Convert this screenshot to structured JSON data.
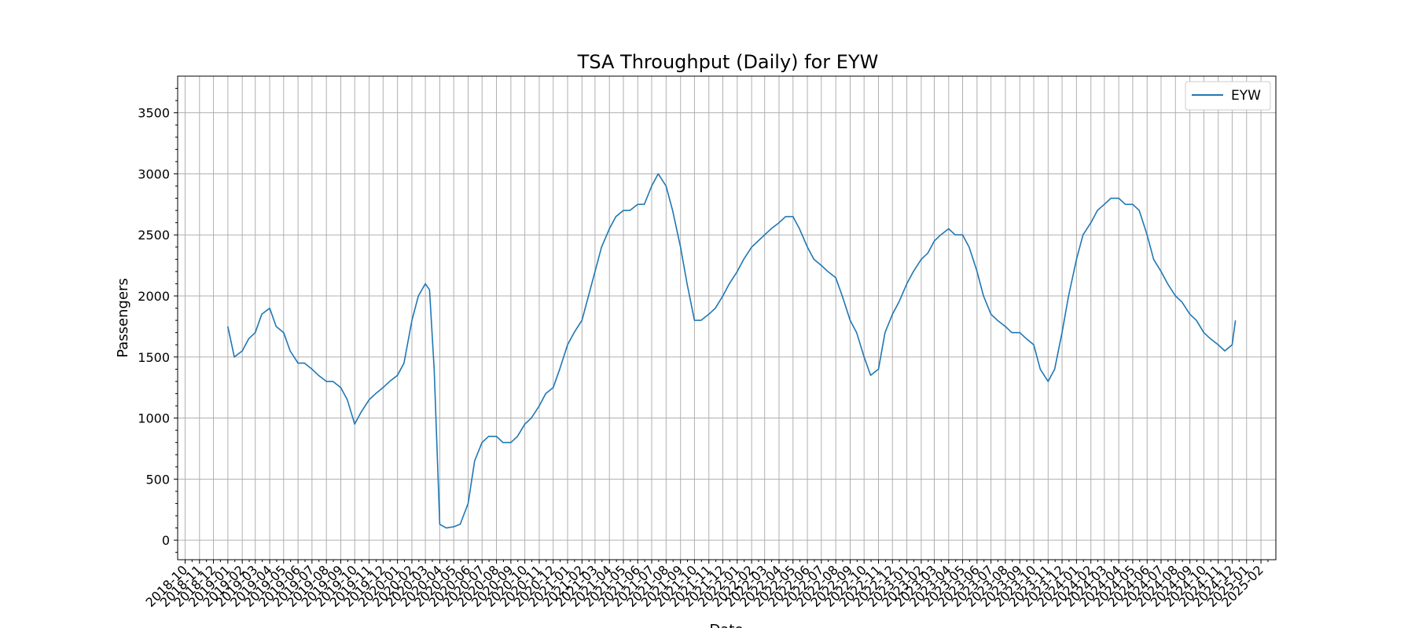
{
  "chart_data": {
    "type": "line",
    "title": "TSA Throughput (Daily) for EYW",
    "xlabel": "Date",
    "ylabel": "Passengers",
    "xlim": [
      "2018-09-15",
      "2025-03-05"
    ],
    "ylim": [
      -160,
      3800
    ],
    "yticks": [
      0,
      500,
      1000,
      1500,
      2000,
      2500,
      3000,
      3500
    ],
    "xticks": [
      "2018-10",
      "2018-11",
      "2018-12",
      "2019-01",
      "2019-02",
      "2019-03",
      "2019-04",
      "2019-05",
      "2019-06",
      "2019-07",
      "2019-08",
      "2019-09",
      "2019-10",
      "2019-11",
      "2019-12",
      "2020-01",
      "2020-02",
      "2020-03",
      "2020-04",
      "2020-05",
      "2020-06",
      "2020-07",
      "2020-08",
      "2020-09",
      "2020-10",
      "2020-11",
      "2020-12",
      "2021-01",
      "2021-02",
      "2021-03",
      "2021-04",
      "2021-05",
      "2021-06",
      "2021-07",
      "2021-08",
      "2021-09",
      "2021-10",
      "2021-11",
      "2021-12",
      "2022-01",
      "2022-02",
      "2022-03",
      "2022-04",
      "2022-05",
      "2022-06",
      "2022-07",
      "2022-08",
      "2022-09",
      "2022-10",
      "2022-11",
      "2022-12",
      "2023-01",
      "2023-02",
      "2023-03",
      "2023-04",
      "2023-05",
      "2023-06",
      "2023-07",
      "2023-08",
      "2023-09",
      "2023-10",
      "2023-11",
      "2023-12",
      "2024-01",
      "2024-02",
      "2024-03",
      "2024-04",
      "2024-05",
      "2024-06",
      "2024-07",
      "2024-08",
      "2024-09",
      "2024-10",
      "2024-11",
      "2024-12",
      "2025-01",
      "2025-02"
    ],
    "grid": true,
    "legend": {
      "placement": "top-right",
      "entries": [
        "EYW"
      ]
    },
    "series": [
      {
        "name": "EYW",
        "color": "#1f77b4",
        "x": [
          "2019-01-01",
          "2019-01-15",
          "2019-02-01",
          "2019-02-15",
          "2019-03-01",
          "2019-03-15",
          "2019-04-01",
          "2019-04-15",
          "2019-05-01",
          "2019-05-15",
          "2019-06-01",
          "2019-06-15",
          "2019-07-01",
          "2019-07-15",
          "2019-08-01",
          "2019-08-15",
          "2019-09-01",
          "2019-09-15",
          "2019-10-01",
          "2019-10-15",
          "2019-11-01",
          "2019-11-15",
          "2019-12-01",
          "2019-12-15",
          "2020-01-01",
          "2020-01-15",
          "2020-02-01",
          "2020-02-15",
          "2020-03-01",
          "2020-03-10",
          "2020-03-20",
          "2020-04-01",
          "2020-04-15",
          "2020-05-01",
          "2020-05-15",
          "2020-06-01",
          "2020-06-15",
          "2020-07-01",
          "2020-07-15",
          "2020-08-01",
          "2020-08-15",
          "2020-09-01",
          "2020-09-15",
          "2020-10-01",
          "2020-10-15",
          "2020-11-01",
          "2020-11-15",
          "2020-12-01",
          "2020-12-15",
          "2021-01-01",
          "2021-01-15",
          "2021-02-01",
          "2021-02-15",
          "2021-03-01",
          "2021-03-15",
          "2021-04-01",
          "2021-04-15",
          "2021-05-01",
          "2021-05-15",
          "2021-06-01",
          "2021-06-15",
          "2021-07-01",
          "2021-07-15",
          "2021-08-01",
          "2021-08-15",
          "2021-09-01",
          "2021-09-15",
          "2021-10-01",
          "2021-10-15",
          "2021-11-01",
          "2021-11-15",
          "2021-12-01",
          "2021-12-15",
          "2022-01-01",
          "2022-01-15",
          "2022-02-01",
          "2022-02-15",
          "2022-03-01",
          "2022-03-15",
          "2022-04-01",
          "2022-04-15",
          "2022-05-01",
          "2022-05-15",
          "2022-06-01",
          "2022-06-15",
          "2022-07-01",
          "2022-07-15",
          "2022-08-01",
          "2022-08-15",
          "2022-09-01",
          "2022-09-15",
          "2022-10-01",
          "2022-10-15",
          "2022-11-01",
          "2022-11-15",
          "2022-12-01",
          "2022-12-15",
          "2023-01-01",
          "2023-01-15",
          "2023-02-01",
          "2023-02-15",
          "2023-03-01",
          "2023-03-15",
          "2023-04-01",
          "2023-04-15",
          "2023-05-01",
          "2023-05-15",
          "2023-06-01",
          "2023-06-15",
          "2023-07-01",
          "2023-07-15",
          "2023-08-01",
          "2023-08-15",
          "2023-09-01",
          "2023-09-15",
          "2023-10-01",
          "2023-10-15",
          "2023-11-01",
          "2023-11-15",
          "2023-12-01",
          "2023-12-15",
          "2024-01-01",
          "2024-01-15",
          "2024-02-01",
          "2024-02-15",
          "2024-03-01",
          "2024-03-15",
          "2024-04-01",
          "2024-04-15",
          "2024-05-01",
          "2024-05-15",
          "2024-06-01",
          "2024-06-15",
          "2024-07-01",
          "2024-07-15",
          "2024-08-01",
          "2024-08-15",
          "2024-09-01",
          "2024-09-15",
          "2024-10-01",
          "2024-10-15",
          "2024-11-01",
          "2024-11-15",
          "2024-12-01",
          "2024-12-08"
        ],
        "y": [
          1750,
          1500,
          1550,
          1650,
          1700,
          1850,
          1900,
          1750,
          1700,
          1550,
          1450,
          1450,
          1400,
          1350,
          1300,
          1300,
          1250,
          1150,
          950,
          1050,
          1150,
          1200,
          1250,
          1300,
          1350,
          1450,
          1800,
          2000,
          2100,
          2050,
          1400,
          130,
          100,
          110,
          130,
          300,
          650,
          800,
          850,
          850,
          800,
          800,
          850,
          950,
          1000,
          1100,
          1200,
          1250,
          1400,
          1600,
          1700,
          1800,
          2000,
          2200,
          2400,
          2550,
          2650,
          2700,
          2700,
          2750,
          2750,
          2900,
          3000,
          2900,
          2700,
          2400,
          2100,
          1800,
          1800,
          1850,
          1900,
          2000,
          2100,
          2200,
          2300,
          2400,
          2450,
          2500,
          2550,
          2600,
          2650,
          2650,
          2550,
          2400,
          2300,
          2250,
          2200,
          2150,
          2000,
          1800,
          1700,
          1500,
          1350,
          1400,
          1700,
          1850,
          1950,
          2100,
          2200,
          2300,
          2350,
          2450,
          2500,
          2550,
          2500,
          2500,
          2400,
          2200,
          2000,
          1850,
          1800,
          1750,
          1700,
          1700,
          1650,
          1600,
          1400,
          1300,
          1400,
          1700,
          2000,
          2300,
          2500,
          2600,
          2700,
          2750,
          2800,
          2800,
          2750,
          2750,
          2700,
          2500,
          2300,
          2200,
          2100,
          2000,
          1950,
          1850,
          1800,
          1700,
          1650,
          1600,
          1550,
          1600,
          1800
        ]
      }
    ]
  }
}
